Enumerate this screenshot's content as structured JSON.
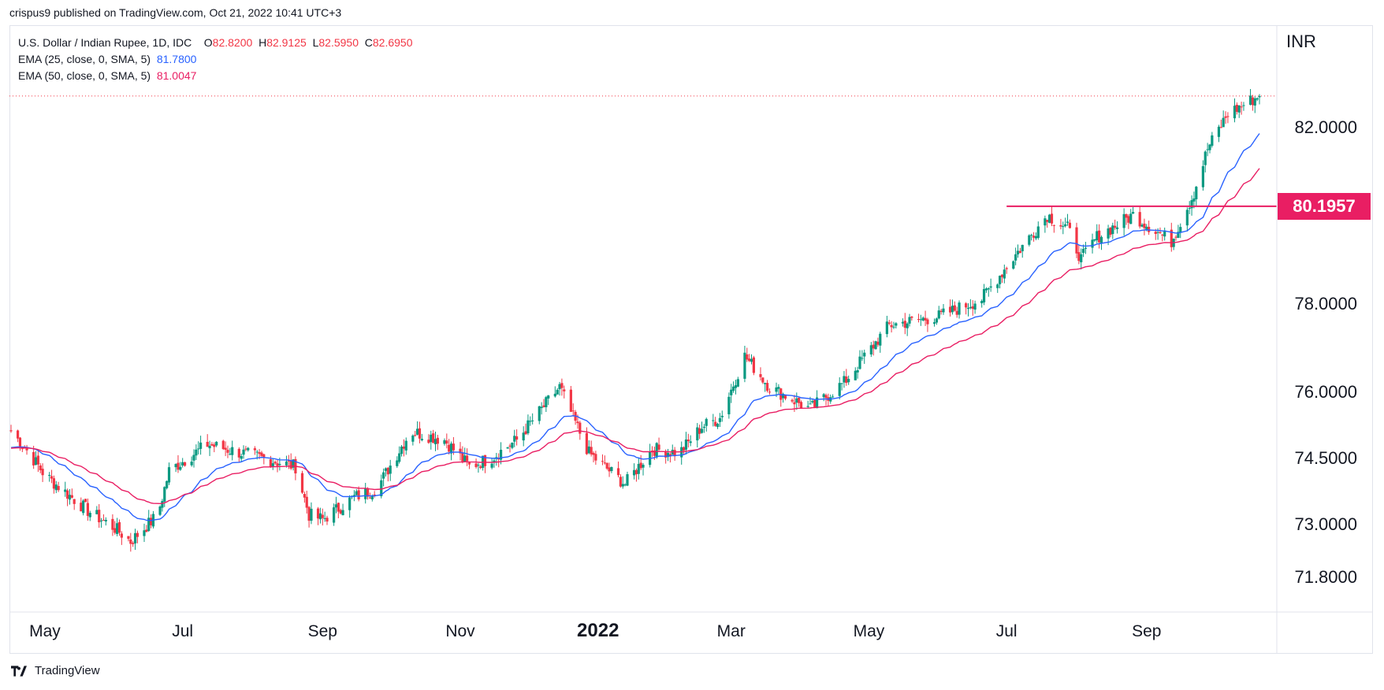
{
  "header": {
    "published": "crispus9 published on TradingView.com, Oct 21, 2022 10:41 UTC+3"
  },
  "legend": {
    "symbol": "U.S. Dollar / Indian Rupee, 1D, IDC",
    "o_label": "O",
    "o_value": "82.8200",
    "h_label": "H",
    "h_value": "82.9125",
    "l_label": "L",
    "l_value": "82.5950",
    "c_label": "C",
    "c_value": "82.6950",
    "ema25_label": "EMA (25, close, 0, SMA, 5)",
    "ema25_value": "81.7800",
    "ema50_label": "EMA (50, close, 0, SMA, 5)",
    "ema50_value": "81.0047"
  },
  "axis": {
    "currency": "INR"
  },
  "price_tag": "80.1957",
  "footer": {
    "brand": "TradingView"
  },
  "colors": {
    "up": "#089981",
    "down": "#f23645",
    "ema25": "#2962ff",
    "ema50": "#e91e63",
    "level": "#e91e63"
  },
  "chart_data": {
    "type": "candlestick",
    "title": "U.S. Dollar / Indian Rupee, 1D, IDC",
    "ylabel": "INR",
    "y_ticks": [
      "71.8000",
      "73.0000",
      "74.5000",
      "76.0000",
      "78.0000",
      "82.0000"
    ],
    "x_ticks": [
      "May",
      "Jul",
      "Sep",
      "Nov",
      "2022",
      "Mar",
      "May",
      "Jul",
      "Sep"
    ],
    "ylim": [
      71.0,
      84.3
    ],
    "x_range": [
      "2021-04-16",
      "2022-10-21"
    ],
    "level": {
      "value": 80.1957,
      "from": "2022-07-01",
      "to": "2022-10-21"
    },
    "last_close": 82.695,
    "anchors": [
      [
        "2021-04-16",
        75.1
      ],
      [
        "2021-04-24",
        74.6
      ],
      [
        "2021-05-01",
        74.1
      ],
      [
        "2021-05-20",
        73.3
      ],
      [
        "2021-06-01",
        72.9
      ],
      [
        "2021-06-08",
        72.6
      ],
      [
        "2021-06-20",
        73.2
      ],
      [
        "2021-06-25",
        74.2
      ],
      [
        "2021-07-12",
        74.8
      ],
      [
        "2021-08-20",
        74.3
      ],
      [
        "2021-08-26",
        73.2
      ],
      [
        "2021-09-01",
        73.1
      ],
      [
        "2021-09-15",
        73.6
      ],
      [
        "2021-09-25",
        73.8
      ],
      [
        "2021-10-10",
        75.1
      ],
      [
        "2021-10-25",
        74.9
      ],
      [
        "2021-11-05",
        74.3
      ],
      [
        "2021-11-15",
        74.5
      ],
      [
        "2021-11-26",
        74.9
      ],
      [
        "2021-12-15",
        76.1
      ],
      [
        "2021-12-28",
        74.6
      ],
      [
        "2022-01-13",
        73.9
      ],
      [
        "2022-01-25",
        74.7
      ],
      [
        "2022-02-06",
        74.6
      ],
      [
        "2022-02-16",
        75.2
      ],
      [
        "2022-02-24",
        75.4
      ],
      [
        "2022-03-07",
        76.8
      ],
      [
        "2022-03-18",
        76.1
      ],
      [
        "2022-04-05",
        75.6
      ],
      [
        "2022-04-20",
        76.2
      ],
      [
        "2022-05-10",
        77.5
      ],
      [
        "2022-06-01",
        77.7
      ],
      [
        "2022-06-20",
        78.1
      ],
      [
        "2022-07-05",
        79.1
      ],
      [
        "2022-07-19",
        80.0
      ],
      [
        "2022-07-28",
        79.7
      ],
      [
        "2022-08-03",
        79.0
      ],
      [
        "2022-08-10",
        79.5
      ],
      [
        "2022-08-26",
        80.0
      ],
      [
        "2022-09-12",
        79.4
      ],
      [
        "2022-09-22",
        80.5
      ],
      [
        "2022-09-28",
        81.5
      ],
      [
        "2022-10-07",
        82.3
      ],
      [
        "2022-10-21",
        82.7
      ]
    ],
    "series": [
      {
        "name": "EMA (25, close, 0, SMA, 5)",
        "last": 81.78
      },
      {
        "name": "EMA (50, close, 0, SMA, 5)",
        "last": 81.0047
      }
    ]
  }
}
